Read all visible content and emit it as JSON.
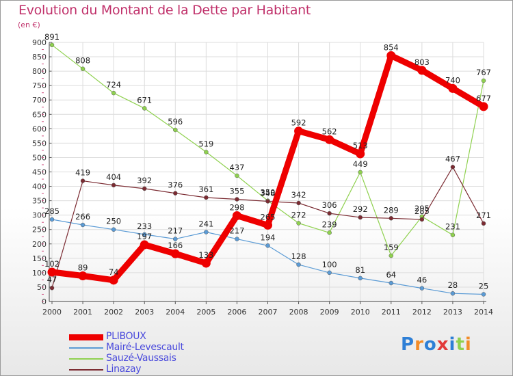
{
  "chart_data": {
    "type": "line",
    "title": "Evolution du Montant de la Dette par Habitant",
    "unit_label": "(en €)",
    "x": [
      "2000",
      "2001",
      "2002",
      "2003",
      "2004",
      "2005",
      "2006",
      "2007",
      "2008",
      "2009",
      "2010",
      "2011",
      "2012",
      "2013",
      "2014"
    ],
    "ylim": [
      0,
      900
    ],
    "yticks": [
      0,
      50,
      100,
      150,
      200,
      250,
      300,
      350,
      400,
      450,
      500,
      550,
      600,
      650,
      700,
      750,
      800,
      850,
      900
    ],
    "grid": true,
    "legend_position": "bottom-left",
    "series": [
      {
        "name": "PLIBOUX",
        "color": "#ee0000",
        "values": [
          102,
          89,
          74,
          197,
          166,
          133,
          298,
          265,
          592,
          562,
          513,
          854,
          803,
          740,
          677
        ]
      },
      {
        "name": "Mairé-Levescault",
        "color": "#5b9bd5",
        "values": [
          285,
          266,
          250,
          233,
          217,
          241,
          217,
          194,
          128,
          100,
          81,
          64,
          46,
          28,
          25
        ]
      },
      {
        "name": "Sauzé-Vaussais",
        "color": "#8fd14f",
        "values": [
          891,
          808,
          724,
          671,
          596,
          519,
          437,
          350,
          272,
          239,
          449,
          159,
          295,
          231,
          767
        ]
      },
      {
        "name": "Linazay",
        "color": "#7b2b32",
        "values": [
          47,
          419,
          404,
          392,
          376,
          361,
          355,
          348,
          342,
          306,
          292,
          289,
          285,
          467,
          271
        ]
      }
    ]
  },
  "logo": {
    "text": "Proxiti",
    "letter_colors": [
      "#2e7fd6",
      "#f28c28",
      "#2e7fd6",
      "#e23a3a",
      "#2e7fd6",
      "#8fd14f",
      "#f28c28"
    ]
  }
}
